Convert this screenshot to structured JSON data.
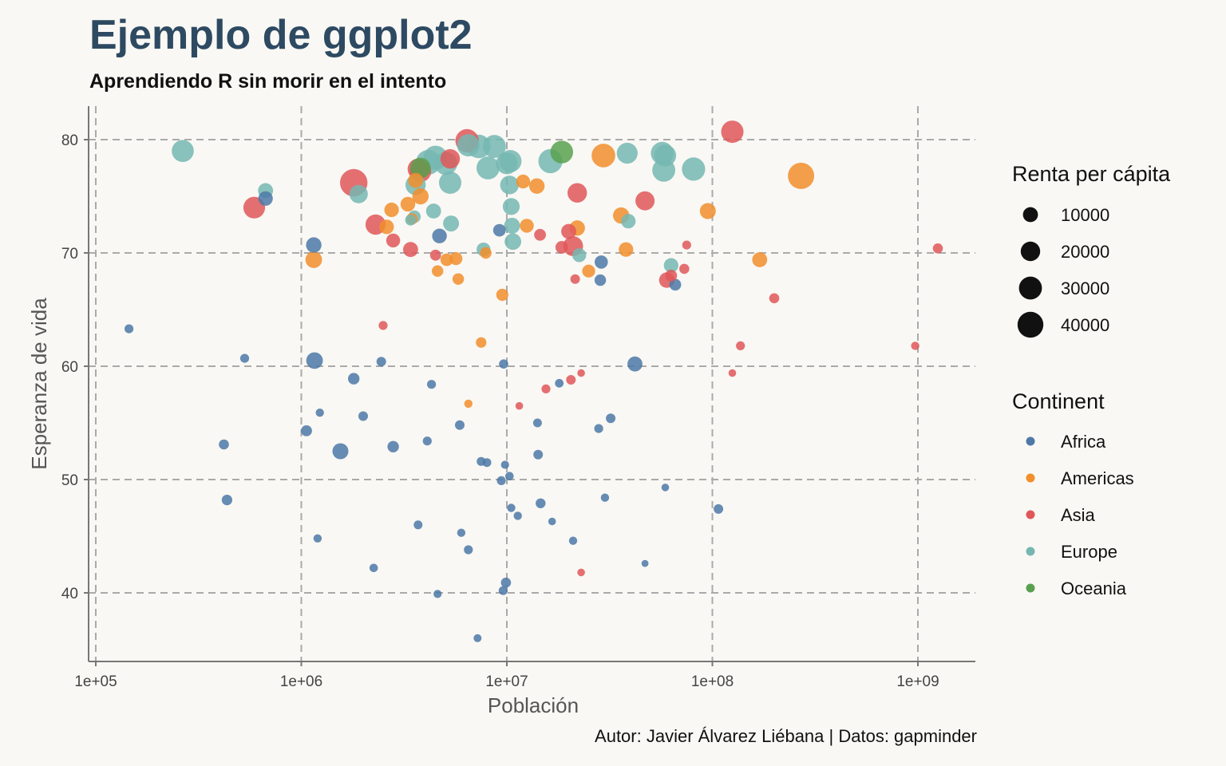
{
  "title": "Ejemplo de ggplot2",
  "subtitle": "Aprendiendo R sin morir en el intento",
  "caption": "Autor: Javier Álvarez Liébana | Datos: gapminder",
  "chart_data": {
    "type": "scatter",
    "xlabel": "Población",
    "ylabel": "Esperanza de vida",
    "x_scale": "log10",
    "xlim": [
      72000,
      2000000000
    ],
    "ylim": [
      34,
      83
    ],
    "x_ticks": [
      100000,
      1000000,
      10000000,
      100000000,
      1000000000
    ],
    "x_tick_labels": [
      "1e+05",
      "1e+06",
      "1e+07",
      "1e+08",
      "1e+09"
    ],
    "y_ticks": [
      40,
      50,
      60,
      70,
      80
    ],
    "y_tick_labels": [
      "40",
      "50",
      "60",
      "70",
      "80"
    ],
    "grid": "major-dashed",
    "legend_position": "right",
    "size_legend": {
      "title": "Renta per cápita",
      "breaks": [
        10000,
        20000,
        30000,
        40000
      ],
      "labels": [
        "10000",
        "20000",
        "30000",
        "40000"
      ]
    },
    "color_legend": {
      "title": "Continent",
      "categories": [
        "Africa",
        "Americas",
        "Asia",
        "Europe",
        "Oceania"
      ],
      "colors": {
        "Africa": "#4e79a7",
        "Americas": "#f28e2b",
        "Asia": "#e15759",
        "Europe": "#76b7b2",
        "Oceania": "#59a14f"
      }
    },
    "series": [
      {
        "name": "Africa",
        "points": [
          [
            145000,
            63.3,
            2000
          ],
          [
            420000,
            53.1,
            3000
          ],
          [
            435000,
            48.2,
            3500
          ],
          [
            530000,
            60.7,
            2000
          ],
          [
            670000,
            74.8,
            9000
          ],
          [
            1060000,
            54.3,
            4000
          ],
          [
            1150000,
            70.7,
            11000
          ],
          [
            1160000,
            60.5,
            13000
          ],
          [
            1200000,
            44.8,
            1500
          ],
          [
            1230000,
            55.9,
            1500
          ],
          [
            1550000,
            52.5,
            12000
          ],
          [
            1800000,
            58.9,
            4500
          ],
          [
            2000000,
            55.6,
            2500
          ],
          [
            2250000,
            42.2,
            1600
          ],
          [
            2450000,
            60.4,
            2500
          ],
          [
            2800000,
            52.9,
            4500
          ],
          [
            3700000,
            46.0,
            1800
          ],
          [
            4100000,
            53.4,
            2000
          ],
          [
            4300000,
            58.4,
            2000
          ],
          [
            4600000,
            39.9,
            1300
          ],
          [
            4700000,
            71.5,
            9500
          ],
          [
            5900000,
            54.8,
            2500
          ],
          [
            6000000,
            45.3,
            1500
          ],
          [
            6500000,
            43.8,
            2000
          ],
          [
            7200000,
            36.0,
            1200
          ],
          [
            7500000,
            51.6,
            2000
          ],
          [
            8000000,
            51.5,
            1800
          ],
          [
            9200000,
            72.0,
            6000
          ],
          [
            9400000,
            49.9,
            2000
          ],
          [
            9600000,
            40.2,
            2000
          ],
          [
            9650000,
            60.2,
            2200
          ],
          [
            9800000,
            51.3,
            1300
          ],
          [
            9900000,
            40.9,
            3000
          ],
          [
            10300000,
            50.3,
            1600
          ],
          [
            10500000,
            47.5,
            1500
          ],
          [
            11300000,
            46.8,
            1500
          ],
          [
            14100000,
            55.0,
            1800
          ],
          [
            14200000,
            52.2,
            2500
          ],
          [
            14600000,
            47.9,
            2800
          ],
          [
            16600000,
            46.3,
            1000
          ],
          [
            18000000,
            58.5,
            1700
          ],
          [
            21000000,
            44.6,
            1500
          ],
          [
            28000000,
            54.5,
            2000
          ],
          [
            28500000,
            67.6,
            4500
          ],
          [
            28800000,
            69.2,
            7000
          ],
          [
            30000000,
            48.4,
            1500
          ],
          [
            32000000,
            55.4,
            2500
          ],
          [
            42000000,
            60.2,
            10000
          ],
          [
            47000000,
            42.6,
            700
          ],
          [
            59000000,
            49.3,
            1000
          ],
          [
            66000000,
            67.2,
            5000
          ],
          [
            107000000,
            47.4,
            2500
          ]
        ]
      },
      {
        "name": "Americas",
        "points": [
          [
            1150000,
            69.4,
            13000
          ],
          [
            2600000,
            72.3,
            9000
          ],
          [
            2750000,
            73.8,
            9000
          ],
          [
            3300000,
            74.3,
            9500
          ],
          [
            3450000,
            73.0,
            4500
          ],
          [
            3600000,
            76.4,
            10000
          ],
          [
            3800000,
            75.0,
            12500
          ],
          [
            4600000,
            68.4,
            4500
          ],
          [
            5100000,
            69.4,
            6000
          ],
          [
            5650000,
            69.5,
            6500
          ],
          [
            5800000,
            67.7,
            4500
          ],
          [
            6500000,
            56.7,
            1500
          ],
          [
            7500000,
            62.1,
            3500
          ],
          [
            7900000,
            70.0,
            4500
          ],
          [
            9500000,
            66.3,
            5500
          ],
          [
            12000000,
            76.3,
            8000
          ],
          [
            12500000,
            72.4,
            8000
          ],
          [
            14000000,
            75.9,
            11000
          ],
          [
            22000000,
            72.2,
            11000
          ],
          [
            25000000,
            68.4,
            6500
          ],
          [
            29500000,
            78.6,
            32000
          ],
          [
            36000000,
            73.3,
            12500
          ],
          [
            38000000,
            70.3,
            9000
          ],
          [
            95000000,
            73.7,
            12000
          ],
          [
            170000000,
            69.4,
            10000
          ],
          [
            270000000,
            76.8,
            42000
          ]
        ]
      },
      {
        "name": "Asia",
        "points": [
          [
            590000,
            74.0,
            26000
          ],
          [
            1800000,
            76.2,
            46000
          ],
          [
            2300000,
            72.5,
            22000
          ],
          [
            2500000,
            63.6,
            2000
          ],
          [
            2800000,
            71.1,
            8000
          ],
          [
            3400000,
            70.3,
            10000
          ],
          [
            3700000,
            77.4,
            24000
          ],
          [
            3800000,
            77.2,
            25000
          ],
          [
            4500000,
            69.8,
            4000
          ],
          [
            5300000,
            78.3,
            20000
          ],
          [
            6400000,
            79.9,
            31000
          ],
          [
            11500000,
            56.5,
            1000
          ],
          [
            14500000,
            71.6,
            5000
          ],
          [
            15500000,
            58.0,
            2000
          ],
          [
            18500000,
            70.5,
            6000
          ],
          [
            20000000,
            71.9,
            10000
          ],
          [
            20500000,
            58.8,
            2500
          ],
          [
            21000000,
            70.6,
            21000
          ],
          [
            21500000,
            67.7,
            2500
          ],
          [
            22000000,
            75.3,
            20000
          ],
          [
            23000000,
            59.4,
            1000
          ],
          [
            23000000,
            41.8,
            1000
          ],
          [
            47000000,
            74.6,
            19000
          ],
          [
            60000000,
            67.6,
            11000
          ],
          [
            63000000,
            68.0,
            5000
          ],
          [
            73000000,
            68.6,
            3000
          ],
          [
            75000000,
            70.7,
            2000
          ],
          [
            125000000,
            80.7,
            28000
          ],
          [
            125000000,
            59.4,
            1000
          ],
          [
            137000000,
            61.8,
            2000
          ],
          [
            200000000,
            66.0,
            3000
          ],
          [
            970000000,
            61.8,
            1500
          ],
          [
            1250000000,
            70.4,
            3000
          ]
        ]
      },
      {
        "name": "Europe",
        "points": [
          [
            265000,
            79.0,
            27000
          ],
          [
            670000,
            75.5,
            10000
          ],
          [
            1900000,
            75.2,
            17000
          ],
          [
            3400000,
            72.9,
            4000
          ],
          [
            3550000,
            73.2,
            6000
          ],
          [
            3600000,
            76.0,
            22000
          ],
          [
            4150000,
            78.0,
            36000
          ],
          [
            4400000,
            73.7,
            10000
          ],
          [
            4500000,
            78.4,
            34000
          ],
          [
            5050000,
            77.9,
            30000
          ],
          [
            5300000,
            76.2,
            28000
          ],
          [
            5350000,
            72.6,
            12000
          ],
          [
            6500000,
            79.5,
            28000
          ],
          [
            7300000,
            79.4,
            32000
          ],
          [
            7700000,
            70.3,
            8000
          ],
          [
            8100000,
            77.5,
            30000
          ],
          [
            8700000,
            79.4,
            30000
          ],
          [
            10000000,
            77.9,
            26000
          ],
          [
            10300000,
            76.0,
            18000
          ],
          [
            10400000,
            78.1,
            28000
          ],
          [
            10500000,
            74.1,
            14000
          ],
          [
            10600000,
            72.4,
            12000
          ],
          [
            10700000,
            71.0,
            13000
          ],
          [
            16300000,
            78.1,
            34000
          ],
          [
            22500000,
            69.8,
            8000
          ],
          [
            38500000,
            78.8,
            24000
          ],
          [
            39000000,
            72.8,
            9000
          ],
          [
            57000000,
            78.8,
            29000
          ],
          [
            58000000,
            77.3,
            30000
          ],
          [
            59000000,
            78.6,
            26000
          ],
          [
            63000000,
            68.9,
            9000
          ],
          [
            81000000,
            77.4,
            31000
          ]
        ]
      },
      {
        "name": "Oceania",
        "points": [
          [
            3800000,
            77.5,
            23000
          ],
          [
            18500000,
            78.9,
            29000
          ]
        ]
      }
    ]
  }
}
